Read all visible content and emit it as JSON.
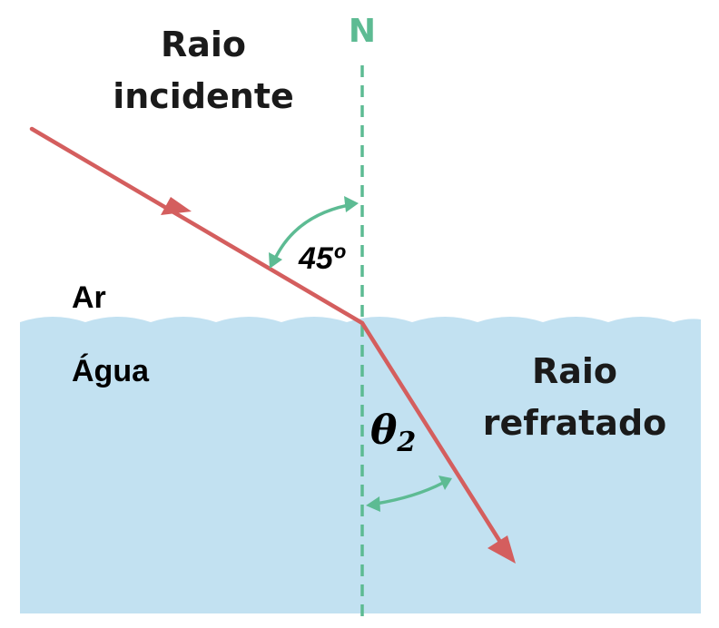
{
  "normal_label": "N",
  "incident_label_line1": "Raio",
  "incident_label_line2": "incidente",
  "refracted_label_line1": "Raio",
  "refracted_label_line2": "refratado",
  "medium_top_label": "Ar",
  "medium_bottom_label": "Água",
  "incident_angle_label": "45º",
  "refracted_angle_symbol": "θ",
  "refracted_angle_subscript": "2",
  "colors": {
    "water": "#c2e1f1",
    "ray": "#d45e5e",
    "normal": "#5dbb93",
    "angle_arc": "#5dbb93",
    "text": "#1a1a1a"
  }
}
